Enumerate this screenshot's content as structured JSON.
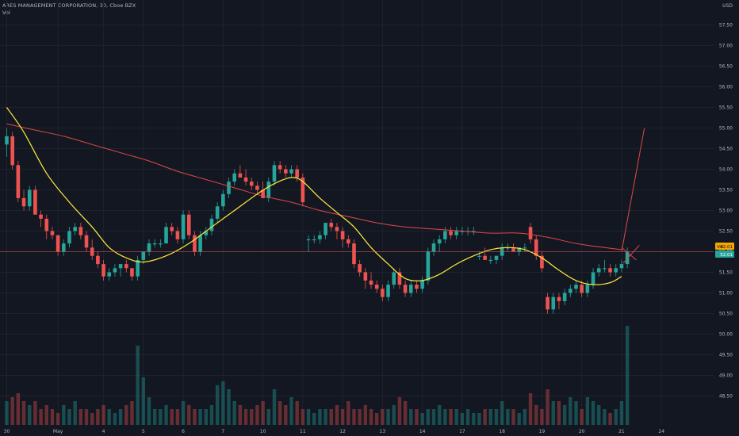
{
  "header": {
    "title": "ARES MANAGEMENT CORPORATION, 30, Cboe BZX",
    "volume_label": "Vol"
  },
  "colors": {
    "background": "#131722",
    "grid": "#1e222d",
    "up": "#26a69a",
    "down": "#ef5350",
    "ma_fast": "#ffeb3b",
    "ma_slow": "#e04848",
    "price_tag": "#f7a600",
    "last_tag": "#26a69a",
    "text": "#b2b5be"
  },
  "chart_data": {
    "type": "candlestick",
    "currency": "USD",
    "y_axis": {
      "ticks": [
        "57.50",
        "57.00",
        "56.50",
        "56.00",
        "55.50",
        "55.00",
        "54.50",
        "54.00",
        "53.50",
        "53.00",
        "52.50",
        "52.00",
        "51.50",
        "51.00",
        "50.50",
        "50.00",
        "49.50",
        "49.00",
        "48.50"
      ],
      "range": [
        48.0,
        58.0
      ]
    },
    "x_axis": {
      "ticks": [
        {
          "label": "30",
          "bar": 0
        },
        {
          "label": "May",
          "bar": 9
        },
        {
          "label": "4",
          "bar": 17
        },
        {
          "label": "5",
          "bar": 24
        },
        {
          "label": "6",
          "bar": 31
        },
        {
          "label": "7",
          "bar": 38
        },
        {
          "label": "10",
          "bar": 45
        },
        {
          "label": "11",
          "bar": 52
        },
        {
          "label": "12",
          "bar": 59
        },
        {
          "label": "13",
          "bar": 66
        },
        {
          "label": "14",
          "bar": 73
        },
        {
          "label": "17",
          "bar": 80
        },
        {
          "label": "18",
          "bar": 87
        },
        {
          "label": "19",
          "bar": 94
        },
        {
          "label": "20",
          "bar": 101
        },
        {
          "label": "21",
          "bar": 108
        },
        {
          "label": "24",
          "bar": 115
        }
      ]
    },
    "candles": [
      [
        54.6,
        55.0,
        54.3,
        54.8
      ],
      [
        54.8,
        54.9,
        54.0,
        54.1
      ],
      [
        54.1,
        54.2,
        53.2,
        53.3
      ],
      [
        53.3,
        53.5,
        53.0,
        53.1
      ],
      [
        53.1,
        53.6,
        53.0,
        53.5
      ],
      [
        53.5,
        53.6,
        52.9,
        52.9
      ],
      [
        52.9,
        53.0,
        52.6,
        52.8
      ],
      [
        52.8,
        52.9,
        52.3,
        52.5
      ],
      [
        52.5,
        52.6,
        52.3,
        52.4
      ],
      [
        52.4,
        52.4,
        51.9,
        52.0
      ],
      [
        52.0,
        52.3,
        51.9,
        52.2
      ],
      [
        52.2,
        52.6,
        52.1,
        52.5
      ],
      [
        52.5,
        52.7,
        52.4,
        52.6
      ],
      [
        52.6,
        52.7,
        52.3,
        52.4
      ],
      [
        52.4,
        52.5,
        52.0,
        52.1
      ],
      [
        52.1,
        52.3,
        51.8,
        51.9
      ],
      [
        51.9,
        52.0,
        51.6,
        51.7
      ],
      [
        51.7,
        51.8,
        51.3,
        51.4
      ],
      [
        51.4,
        51.6,
        51.3,
        51.5
      ],
      [
        51.5,
        51.7,
        51.4,
        51.6
      ],
      [
        51.6,
        51.7,
        51.4,
        51.7
      ],
      [
        51.7,
        51.8,
        51.5,
        51.6
      ],
      [
        51.6,
        51.6,
        51.3,
        51.4
      ],
      [
        51.4,
        51.9,
        51.3,
        51.8
      ],
      [
        51.8,
        52.0,
        51.7,
        52.0
      ],
      [
        52.0,
        52.3,
        51.9,
        52.2
      ],
      [
        52.2,
        52.3,
        52.1,
        52.2
      ],
      [
        52.2,
        52.3,
        52.1,
        52.2
      ],
      [
        52.2,
        52.7,
        52.2,
        52.6
      ],
      [
        52.6,
        52.7,
        52.4,
        52.5
      ],
      [
        52.5,
        52.6,
        52.2,
        52.3
      ],
      [
        52.3,
        53.0,
        52.2,
        52.9
      ],
      [
        52.9,
        53.0,
        52.3,
        52.4
      ],
      [
        52.4,
        52.5,
        51.9,
        52.0
      ],
      [
        52.0,
        52.5,
        51.9,
        52.4
      ],
      [
        52.4,
        52.6,
        52.3,
        52.5
      ],
      [
        52.5,
        52.9,
        52.4,
        52.8
      ],
      [
        52.8,
        53.2,
        52.7,
        53.1
      ],
      [
        53.1,
        53.5,
        53.0,
        53.4
      ],
      [
        53.4,
        53.8,
        53.3,
        53.7
      ],
      [
        53.7,
        54.0,
        53.6,
        53.9
      ],
      [
        53.9,
        54.1,
        53.8,
        53.8
      ],
      [
        53.8,
        54.0,
        53.6,
        53.7
      ],
      [
        53.7,
        53.8,
        53.5,
        53.6
      ],
      [
        53.6,
        53.7,
        53.4,
        53.5
      ],
      [
        53.5,
        53.7,
        53.3,
        53.3
      ],
      [
        53.3,
        53.8,
        53.2,
        53.7
      ],
      [
        53.7,
        54.2,
        53.6,
        54.1
      ],
      [
        54.1,
        54.2,
        53.9,
        54.0
      ],
      [
        54.0,
        54.1,
        53.8,
        53.9
      ],
      [
        53.9,
        54.1,
        53.8,
        54.0
      ],
      [
        54.0,
        54.1,
        53.7,
        53.8
      ],
      [
        53.8,
        53.9,
        53.1,
        53.2
      ],
      [
        52.3,
        52.4,
        52.0,
        52.3
      ],
      [
        52.3,
        52.4,
        52.2,
        52.3
      ],
      [
        52.3,
        52.5,
        52.2,
        52.4
      ],
      [
        52.4,
        52.7,
        52.3,
        52.7
      ],
      [
        52.7,
        52.8,
        52.5,
        52.6
      ],
      [
        52.6,
        52.7,
        52.3,
        52.5
      ],
      [
        52.5,
        52.6,
        52.1,
        52.3
      ],
      [
        52.3,
        52.4,
        52.1,
        52.2
      ],
      [
        52.2,
        52.3,
        51.6,
        51.7
      ],
      [
        51.7,
        51.8,
        51.4,
        51.5
      ],
      [
        51.5,
        51.6,
        51.1,
        51.3
      ],
      [
        51.3,
        51.5,
        51.1,
        51.2
      ],
      [
        51.2,
        51.3,
        51.0,
        51.1
      ],
      [
        51.1,
        51.2,
        50.8,
        50.9
      ],
      [
        50.9,
        51.3,
        50.8,
        51.2
      ],
      [
        51.2,
        51.6,
        51.1,
        51.5
      ],
      [
        51.5,
        51.6,
        51.1,
        51.2
      ],
      [
        51.2,
        51.3,
        50.9,
        51.0
      ],
      [
        51.0,
        51.3,
        50.9,
        51.2
      ],
      [
        51.2,
        51.3,
        51.0,
        51.1
      ],
      [
        51.1,
        51.4,
        51.0,
        51.3
      ],
      [
        51.3,
        52.1,
        51.2,
        52.0
      ],
      [
        52.0,
        52.3,
        51.9,
        52.2
      ],
      [
        52.2,
        52.4,
        52.0,
        52.3
      ],
      [
        52.3,
        52.6,
        52.2,
        52.5
      ],
      [
        52.5,
        52.6,
        52.3,
        52.4
      ],
      [
        52.4,
        52.6,
        52.3,
        52.5
      ],
      [
        52.5,
        52.6,
        52.4,
        52.5
      ],
      [
        52.5,
        52.6,
        52.4,
        52.5
      ],
      [
        52.5,
        52.6,
        52.4,
        52.5
      ],
      [
        51.9,
        52.0,
        51.8,
        51.9
      ],
      [
        51.9,
        52.1,
        51.8,
        51.8
      ],
      [
        51.8,
        51.9,
        51.7,
        51.8
      ],
      [
        51.8,
        51.9,
        51.7,
        51.9
      ],
      [
        51.9,
        52.2,
        51.8,
        52.1
      ],
      [
        52.1,
        52.2,
        52.0,
        52.1
      ],
      [
        52.1,
        52.2,
        52.0,
        52.0
      ],
      [
        52.0,
        52.1,
        51.9,
        52.1
      ],
      [
        52.1,
        52.2,
        52.0,
        52.1
      ],
      [
        52.6,
        52.7,
        52.2,
        52.3
      ],
      [
        52.3,
        52.4,
        51.8,
        51.9
      ],
      [
        51.9,
        52.0,
        51.5,
        51.6
      ],
      [
        50.9,
        51.0,
        50.5,
        50.6
      ],
      [
        50.6,
        51.0,
        50.5,
        50.9
      ],
      [
        50.9,
        51.0,
        50.6,
        50.8
      ],
      [
        50.8,
        51.1,
        50.7,
        51.0
      ],
      [
        51.0,
        51.2,
        50.9,
        51.1
      ],
      [
        51.1,
        51.3,
        51.0,
        51.2
      ],
      [
        51.2,
        51.3,
        50.9,
        51.0
      ],
      [
        51.0,
        51.3,
        50.9,
        51.2
      ],
      [
        51.2,
        51.6,
        51.1,
        51.5
      ],
      [
        51.5,
        51.7,
        51.4,
        51.6
      ],
      [
        51.6,
        51.8,
        51.5,
        51.6
      ],
      [
        51.6,
        51.7,
        51.4,
        51.5
      ],
      [
        51.5,
        51.7,
        51.4,
        51.6
      ],
      [
        51.6,
        51.8,
        51.5,
        51.7
      ],
      [
        51.7,
        52.1,
        51.6,
        52.0
      ]
    ],
    "volumes": [
      0.3,
      0.35,
      0.4,
      0.3,
      0.25,
      0.3,
      0.2,
      0.25,
      0.2,
      0.15,
      0.25,
      0.2,
      0.3,
      0.2,
      0.2,
      0.15,
      0.2,
      0.25,
      0.2,
      0.15,
      0.2,
      0.25,
      0.3,
      1.0,
      0.6,
      0.35,
      0.2,
      0.2,
      0.25,
      0.2,
      0.2,
      0.3,
      0.25,
      0.2,
      0.2,
      0.2,
      0.25,
      0.5,
      0.55,
      0.45,
      0.3,
      0.25,
      0.2,
      0.2,
      0.25,
      0.3,
      0.2,
      0.45,
      0.3,
      0.25,
      0.35,
      0.3,
      0.2,
      0.2,
      0.15,
      0.2,
      0.2,
      0.2,
      0.25,
      0.2,
      0.3,
      0.2,
      0.2,
      0.25,
      0.2,
      0.15,
      0.2,
      0.2,
      0.25,
      0.35,
      0.3,
      0.2,
      0.2,
      0.15,
      0.2,
      0.2,
      0.25,
      0.2,
      0.2,
      0.2,
      0.15,
      0.2,
      0.15,
      0.15,
      0.2,
      0.2,
      0.2,
      0.3,
      0.2,
      0.2,
      0.15,
      0.2,
      0.4,
      0.25,
      0.2,
      0.45,
      0.3,
      0.3,
      0.25,
      0.35,
      0.3,
      0.2,
      0.35,
      0.3,
      0.25,
      0.2,
      0.15,
      0.2,
      0.3,
      1.25
    ],
    "ma_fast": {
      "points": [
        [
          0,
          55.5
        ],
        [
          3,
          54.9
        ],
        [
          7,
          53.9
        ],
        [
          11,
          53.2
        ],
        [
          15,
          52.6
        ],
        [
          18,
          52.1
        ],
        [
          21,
          51.85
        ],
        [
          24,
          51.75
        ],
        [
          28,
          51.9
        ],
        [
          32,
          52.2
        ],
        [
          36,
          52.6
        ],
        [
          40,
          53.0
        ],
        [
          44,
          53.4
        ],
        [
          47,
          53.65
        ],
        [
          50,
          53.8
        ],
        [
          52,
          53.7
        ],
        [
          55,
          53.3
        ],
        [
          58,
          52.95
        ],
        [
          61,
          52.6
        ],
        [
          64,
          52.1
        ],
        [
          67,
          51.7
        ],
        [
          70,
          51.35
        ],
        [
          73,
          51.3
        ],
        [
          76,
          51.45
        ],
        [
          79,
          51.7
        ],
        [
          82,
          51.9
        ],
        [
          85,
          52.05
        ],
        [
          88,
          52.1
        ],
        [
          91,
          52.05
        ],
        [
          94,
          51.85
        ],
        [
          97,
          51.55
        ],
        [
          100,
          51.3
        ],
        [
          103,
          51.2
        ],
        [
          106,
          51.25
        ],
        [
          108,
          51.4
        ]
      ]
    },
    "ma_slow": {
      "points": [
        [
          0,
          55.1
        ],
        [
          5,
          54.95
        ],
        [
          10,
          54.8
        ],
        [
          15,
          54.6
        ],
        [
          20,
          54.4
        ],
        [
          25,
          54.2
        ],
        [
          30,
          53.95
        ],
        [
          35,
          53.75
        ],
        [
          40,
          53.55
        ],
        [
          45,
          53.35
        ],
        [
          50,
          53.2
        ],
        [
          55,
          53.0
        ],
        [
          60,
          52.85
        ],
        [
          65,
          52.7
        ],
        [
          70,
          52.6
        ],
        [
          75,
          52.55
        ],
        [
          80,
          52.5
        ],
        [
          85,
          52.45
        ],
        [
          90,
          52.45
        ],
        [
          95,
          52.35
        ],
        [
          100,
          52.2
        ],
        [
          105,
          52.1
        ],
        [
          108,
          52.05
        ]
      ]
    },
    "drawing": {
      "type": "projection",
      "points": [
        [
          108,
          52.0
        ],
        [
          112,
          55.0
        ]
      ],
      "mark_x": [
        [
          108,
          52.1
        ],
        [
          110,
          51.8
        ]
      ]
    },
    "price_tag": {
      "label": "Vol",
      "value": "52.01"
    },
    "last_tag": {
      "value": "52.01"
    }
  }
}
